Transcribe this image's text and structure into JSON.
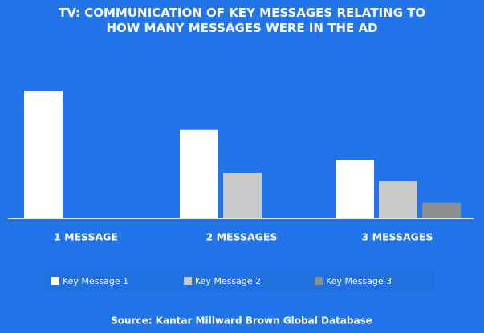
{
  "chart_data": {
    "type": "bar",
    "title": "TV: COMMUNICATION OF KEY MESSAGES RELATING TO HOW MANY MESSAGES WERE IN THE AD",
    "categories": [
      "1 MESSAGE",
      "2 MESSAGES",
      "3 MESSAGES"
    ],
    "series": [
      {
        "name": "Key Message 1",
        "color": "#ffffff",
        "values": [
          157,
          109,
          72
        ]
      },
      {
        "name": "Key Message 2",
        "color": "#c9c9c9",
        "values": [
          null,
          56,
          46
        ]
      },
      {
        "name": "Key Message 3",
        "color": "#8e8e8e",
        "values": [
          null,
          null,
          19
        ]
      }
    ],
    "ylim": [
      0,
      170
    ],
    "source": "Source: Kantar Millward Brown Global Database"
  }
}
